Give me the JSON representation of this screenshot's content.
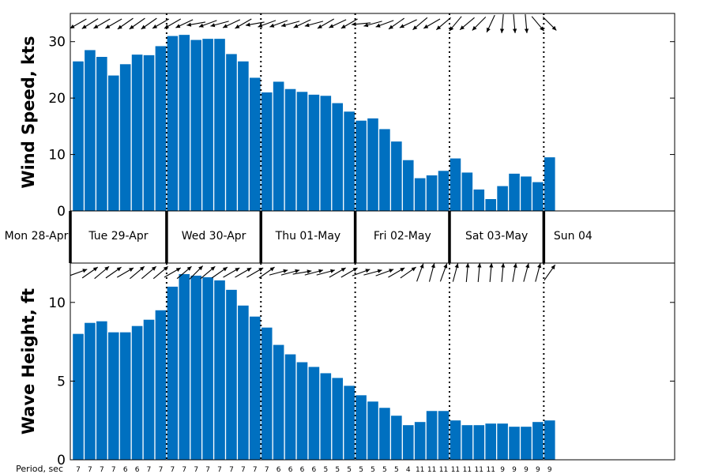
{
  "chart_data": [
    {
      "type": "bar",
      "ylabel": "Wind Speed, kts",
      "ylim": [
        0,
        35
      ],
      "yticks": [
        0,
        10,
        20,
        30
      ],
      "bar_color": "#0070c0",
      "values": [
        26.5,
        28.5,
        27.3,
        24,
        26,
        27.7,
        27.6,
        29.2,
        31,
        31.2,
        30.3,
        30.5,
        30.5,
        27.8,
        26.5,
        23.6,
        21,
        22.9,
        21.6,
        21.1,
        20.6,
        20.4,
        19.1,
        17.6,
        16,
        16.4,
        14.5,
        12.3,
        9,
        5.8,
        6.3,
        7.1,
        9.3,
        6.8,
        3.8,
        2.1,
        4.4,
        6.6,
        6.1,
        5.1,
        9.5
      ],
      "direction_arrows": [
        150,
        148,
        150,
        150,
        145,
        145,
        145,
        150,
        150,
        155,
        170,
        160,
        165,
        155,
        150,
        170,
        160,
        160,
        165,
        155,
        165,
        150,
        155,
        150,
        175,
        165,
        160,
        145,
        155,
        140,
        150,
        140,
        130,
        140,
        135,
        115,
        95,
        85,
        85,
        50,
        45
      ]
    },
    {
      "type": "bar",
      "ylabel": "Wave Height, ft",
      "ylim": [
        0,
        12.5
      ],
      "yticks": [
        0,
        5,
        10
      ],
      "bar_color": "#0070c0",
      "values": [
        8,
        8.7,
        8.8,
        8.1,
        8.1,
        8.5,
        8.9,
        9.5,
        11,
        11.8,
        11.7,
        11.6,
        11.4,
        10.8,
        9.8,
        9.1,
        8.4,
        7.3,
        6.7,
        6.2,
        5.9,
        5.5,
        5.2,
        4.7,
        4.1,
        3.7,
        3.3,
        2.8,
        2.2,
        2.4,
        3.1,
        3.1,
        2.5,
        2.2,
        2.2,
        2.3,
        2.3,
        2.1,
        2.1,
        2.4,
        2.5
      ],
      "direction_arrows": [
        340,
        325,
        320,
        325,
        330,
        320,
        320,
        320,
        330,
        320,
        315,
        320,
        325,
        330,
        330,
        330,
        325,
        345,
        345,
        350,
        345,
        345,
        330,
        330,
        340,
        345,
        340,
        330,
        325,
        290,
        285,
        290,
        285,
        275,
        275,
        275,
        275,
        280,
        285,
        285,
        305
      ]
    }
  ],
  "days": [
    {
      "label": "Mon 28-Apr"
    },
    {
      "label": "Tue 29-Apr"
    },
    {
      "label": "Wed 30-Apr"
    },
    {
      "label": "Thu 01-May"
    },
    {
      "label": "Fri 02-May"
    },
    {
      "label": "Sat 03-May"
    },
    {
      "label": "Sun 04"
    }
  ],
  "day_start_bars": [
    8,
    16,
    24,
    32,
    40
  ],
  "period_label": "Period, sec",
  "periods": [
    "7",
    "7",
    "7",
    "7",
    "6",
    "6",
    "7",
    "7",
    "7",
    "7",
    "7",
    "7",
    "7",
    "7",
    "7",
    "7",
    "7",
    "6",
    "6",
    "6",
    "6",
    "5",
    "5",
    "5",
    "5",
    "5",
    "5",
    "5",
    "4",
    "11",
    "11",
    "11",
    "11",
    "11",
    "11",
    "11",
    "9",
    "9",
    "9",
    "9",
    "9"
  ]
}
